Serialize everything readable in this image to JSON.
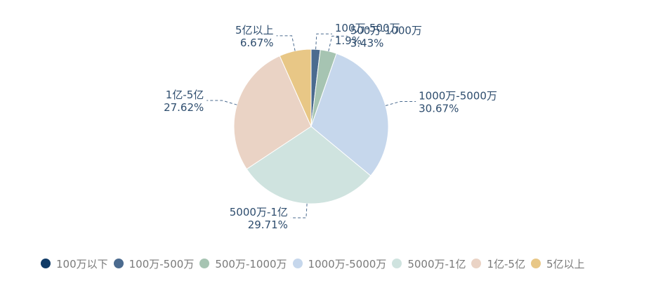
{
  "chart_data": {
    "type": "pie",
    "title": "",
    "series": [
      {
        "name": "",
        "slices": [
          {
            "label": "100万以下",
            "value": 0,
            "percent_label": "",
            "color": "#0f3a66"
          },
          {
            "label": "100万-500万",
            "value": 1.9,
            "percent_label": "1.9%",
            "color": "#4b6b8f"
          },
          {
            "label": "500万-1000万",
            "value": 3.43,
            "percent_label": "3.43%",
            "color": "#a6c4b2"
          },
          {
            "label": "1000万-5000万",
            "value": 30.67,
            "percent_label": "30.67%",
            "color": "#c6d7ec"
          },
          {
            "label": "5000万-1亿",
            "value": 29.71,
            "percent_label": "29.71%",
            "color": "#cfe3df"
          },
          {
            "label": "1亿-5亿",
            "value": 27.62,
            "percent_label": "27.62%",
            "color": "#ead3c5"
          },
          {
            "label": "5亿以上",
            "value": 6.67,
            "percent_label": "6.67%",
            "color": "#e8c786"
          }
        ]
      }
    ],
    "legend": {
      "position": "bottom-left"
    },
    "label_color": "#2e4d6e",
    "leader_line_style": "dashed"
  }
}
